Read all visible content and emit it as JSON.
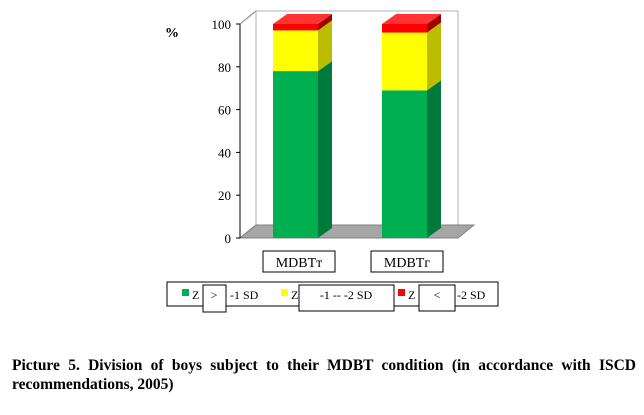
{
  "chart_data": {
    "type": "bar",
    "stacked": true,
    "three_d": true,
    "ylabel": "%",
    "ylim": [
      0,
      100
    ],
    "yticks": [
      0,
      20,
      40,
      60,
      80,
      100
    ],
    "categories": [
      "MDBTт",
      "MDBTг"
    ],
    "series": [
      {
        "name_parts": [
          "Z",
          ">",
          "-1 SD"
        ],
        "color": "#00b050",
        "side": "#007a3a",
        "top": "#00d060",
        "values": [
          78,
          69
        ]
      },
      {
        "name_parts": [
          "Z",
          "-1 -- -2 SD"
        ],
        "color": "#ffff00",
        "side": "#bdbd00",
        "top": "#ffff66",
        "values": [
          19,
          27
        ]
      },
      {
        "name_parts": [
          "Z",
          "<",
          "-2 SD"
        ],
        "color": "#ff0000",
        "side": "#a00000",
        "top": "#ff3333",
        "values": [
          3,
          4
        ]
      }
    ],
    "legend_position": "bottom",
    "grid": false
  },
  "caption": "Picture 5. Division of boys subject to their MDBT condition (in accordance with ISCD recommendations, 2005)"
}
